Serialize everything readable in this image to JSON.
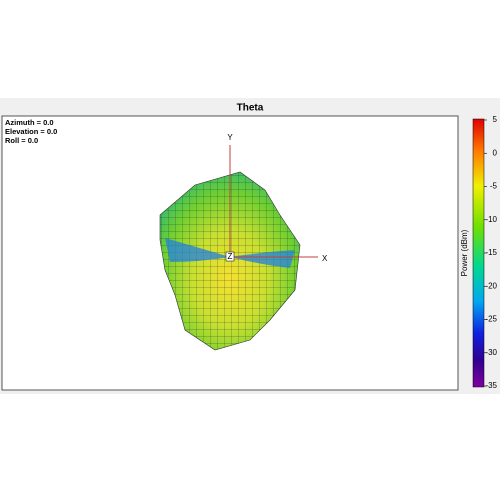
{
  "window": {
    "title": "Theta"
  },
  "view": {
    "lines": [
      "Azimuth = 0.0",
      "Elevation = 0.0",
      "Roll = 0.0"
    ]
  },
  "axes": {
    "y": "Y",
    "x": "X",
    "z": "Z"
  },
  "colorbar": {
    "label": "Power (dBm)",
    "lim": [
      -35,
      5
    ],
    "ticks": [
      5,
      0,
      -5,
      -10,
      -15,
      -20,
      -25,
      -30,
      -35
    ]
  }
}
